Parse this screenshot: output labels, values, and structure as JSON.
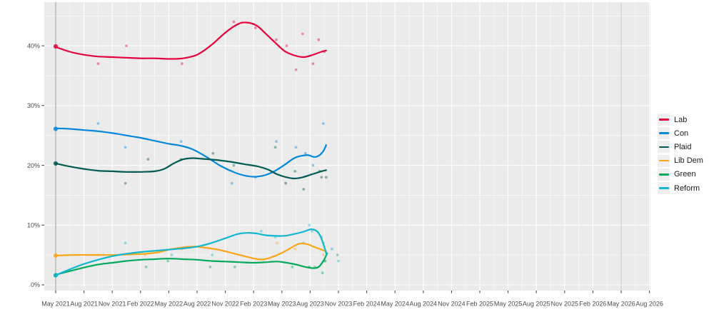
{
  "chart_data": {
    "type": "line",
    "title": "",
    "description": "Smoothed opinion polling trends with scatter of individual polls for six Welsh parties, May 2021 to Nov 2023, axis extended to Aug 2026",
    "x_axis": {
      "tick_labels": [
        "May 2021",
        "Aug 2021",
        "Nov 2021",
        "Feb 2022",
        "May 2022",
        "Aug 2022",
        "Nov 2022",
        "Feb 2023",
        "May 2023",
        "Aug 2023",
        "Nov 2023",
        "Feb 2024",
        "May 2024",
        "Aug 2024",
        "Nov 2024",
        "Feb 2025",
        "May 2025",
        "Aug 2025",
        "Nov 2025",
        "Feb 2026",
        "May 2026",
        "Aug 2026"
      ],
      "tick_months": [
        0,
        3,
        6,
        9,
        12,
        15,
        18,
        21,
        24,
        27,
        30,
        33,
        36,
        39,
        42,
        45,
        48,
        51,
        54,
        57,
        60,
        63
      ],
      "minor_grid": true
    },
    "y_axis": {
      "tick_labels": [
        "0%",
        "10%",
        "20%",
        "30%",
        "40%"
      ],
      "tick_values": [
        0,
        10,
        20,
        30,
        40
      ],
      "minor_values": [
        5,
        15,
        25,
        35,
        45
      ],
      "range": [
        -1,
        47.3
      ]
    },
    "grid": "on",
    "panel_color": "#ebebeb",
    "grid_color": "#ffffff",
    "axis_text_color": "#4d4d4d",
    "reference_lines": [
      {
        "name": "election-2021",
        "month": 0,
        "color": "#9e9e9e"
      },
      {
        "name": "election-2026",
        "month": 60,
        "color": "#c6c6c6"
      }
    ],
    "series": [
      {
        "name": "Lab",
        "color": "#E4003B",
        "election_result": {
          "month": 0,
          "value": 39.9
        },
        "trend": [
          [
            0,
            39.8
          ],
          [
            1.5,
            39.0
          ],
          [
            3,
            38.5
          ],
          [
            4.5,
            38.2
          ],
          [
            6,
            38.1
          ],
          [
            7.5,
            38.0
          ],
          [
            9,
            37.9
          ],
          [
            10.5,
            37.9
          ],
          [
            12,
            37.8
          ],
          [
            13.5,
            37.9
          ],
          [
            15,
            38.5
          ],
          [
            16.5,
            40.1
          ],
          [
            18,
            42.2
          ],
          [
            19.3,
            43.6
          ],
          [
            20.2,
            43.9
          ],
          [
            21.3,
            43.4
          ],
          [
            22.3,
            42.0
          ],
          [
            23.3,
            40.5
          ],
          [
            24.3,
            39.1
          ],
          [
            25.3,
            38.4
          ],
          [
            26.3,
            38.1
          ],
          [
            27.3,
            38.5
          ],
          [
            28.2,
            39.0
          ],
          [
            28.7,
            39.2
          ]
        ],
        "polls": [
          [
            4.5,
            37
          ],
          [
            7.5,
            40
          ],
          [
            13.4,
            37
          ],
          [
            18.9,
            44
          ],
          [
            21.2,
            43
          ],
          [
            23.4,
            41
          ],
          [
            24.5,
            40
          ],
          [
            25.5,
            36
          ],
          [
            26.2,
            42
          ],
          [
            27.3,
            37
          ],
          [
            27.9,
            41
          ],
          [
            28.5,
            39
          ]
        ]
      },
      {
        "name": "Con",
        "color": "#0087DC",
        "election_result": {
          "month": 0,
          "value": 26.1
        },
        "trend": [
          [
            0,
            26.2
          ],
          [
            1.5,
            26.1
          ],
          [
            3,
            25.9
          ],
          [
            4.5,
            25.7
          ],
          [
            6,
            25.4
          ],
          [
            7.5,
            25.0
          ],
          [
            9,
            24.6
          ],
          [
            10.5,
            24.1
          ],
          [
            12,
            23.6
          ],
          [
            13.2,
            23.3
          ],
          [
            14.5,
            22.7
          ],
          [
            16,
            21.4
          ],
          [
            17.5,
            19.9
          ],
          [
            19,
            18.8
          ],
          [
            20.3,
            18.2
          ],
          [
            21.3,
            18.1
          ],
          [
            22.3,
            18.4
          ],
          [
            23.3,
            19.1
          ],
          [
            24.3,
            20.1
          ],
          [
            25.3,
            21.2
          ],
          [
            26.1,
            21.6
          ],
          [
            26.8,
            21.7
          ],
          [
            27.4,
            21.4
          ],
          [
            27.9,
            21.6
          ],
          [
            28.4,
            22.4
          ],
          [
            28.7,
            23.4
          ]
        ],
        "polls": [
          [
            4.5,
            27
          ],
          [
            7.4,
            23
          ],
          [
            13.3,
            24
          ],
          [
            18.7,
            17
          ],
          [
            21.2,
            18
          ],
          [
            23.4,
            24
          ],
          [
            25.5,
            23
          ],
          [
            26.5,
            22
          ],
          [
            27.3,
            20
          ],
          [
            28.4,
            27
          ]
        ]
      },
      {
        "name": "Plaid",
        "color": "#005B54",
        "election_result": {
          "month": 0,
          "value": 20.3
        },
        "trend": [
          [
            0,
            20.3
          ],
          [
            1.5,
            19.8
          ],
          [
            3,
            19.4
          ],
          [
            4.5,
            19.1
          ],
          [
            6,
            19.0
          ],
          [
            7.5,
            18.9
          ],
          [
            9,
            18.9
          ],
          [
            10.5,
            19.0
          ],
          [
            11.5,
            19.4
          ],
          [
            12.5,
            20.3
          ],
          [
            13.5,
            21.0
          ],
          [
            14.5,
            21.2
          ],
          [
            15.5,
            21.1
          ],
          [
            17,
            20.9
          ],
          [
            18.5,
            20.6
          ],
          [
            20,
            20.2
          ],
          [
            21.5,
            19.8
          ],
          [
            22.5,
            19.3
          ],
          [
            23.5,
            18.5
          ],
          [
            24.5,
            18.0
          ],
          [
            25.3,
            17.8
          ],
          [
            26.2,
            18.0
          ],
          [
            27.2,
            18.5
          ],
          [
            28.2,
            19.0
          ],
          [
            28.7,
            19.2
          ]
        ],
        "polls": [
          [
            7.4,
            17
          ],
          [
            9.8,
            21
          ],
          [
            13.3,
            21
          ],
          [
            16.7,
            22
          ],
          [
            18.9,
            20
          ],
          [
            23.3,
            23
          ],
          [
            24.4,
            17
          ],
          [
            25.4,
            19
          ],
          [
            26.3,
            16
          ],
          [
            28.0,
            19
          ],
          [
            28.2,
            18
          ],
          [
            28.7,
            18
          ]
        ]
      },
      {
        "name": "Lib Dem",
        "color": "#FAA61A",
        "election_result": {
          "month": 0,
          "value": 4.9
        },
        "trend": [
          [
            0,
            4.9
          ],
          [
            2,
            5.0
          ],
          [
            4,
            5.0
          ],
          [
            6,
            5.0
          ],
          [
            8,
            5.1
          ],
          [
            9.5,
            5.2
          ],
          [
            11,
            5.5
          ],
          [
            12.3,
            6.0
          ],
          [
            13.6,
            6.3
          ],
          [
            14.8,
            6.4
          ],
          [
            16,
            6.2
          ],
          [
            17.5,
            5.8
          ],
          [
            19,
            5.2
          ],
          [
            20.3,
            4.7
          ],
          [
            21.4,
            4.3
          ],
          [
            22.2,
            4.3
          ],
          [
            23.2,
            4.8
          ],
          [
            24.3,
            5.6
          ],
          [
            25.3,
            6.5
          ],
          [
            25.9,
            6.9
          ],
          [
            26.7,
            6.8
          ],
          [
            27.5,
            6.3
          ],
          [
            28.2,
            5.9
          ],
          [
            28.7,
            5.6
          ]
        ],
        "polls": [
          [
            4.5,
            5
          ],
          [
            9.5,
            5
          ],
          [
            13.4,
            6
          ],
          [
            23.5,
            7
          ],
          [
            25.4,
            6
          ],
          [
            28.4,
            5
          ]
        ]
      },
      {
        "name": "Green",
        "color": "#02A95B",
        "election_result": {
          "month": 0,
          "value": 1.6
        },
        "trend": [
          [
            0,
            1.7
          ],
          [
            1.5,
            2.3
          ],
          [
            3,
            2.9
          ],
          [
            4.5,
            3.4
          ],
          [
            6,
            3.7
          ],
          [
            7.5,
            4.0
          ],
          [
            9,
            4.2
          ],
          [
            10.5,
            4.3
          ],
          [
            12,
            4.4
          ],
          [
            13.5,
            4.3
          ],
          [
            15,
            4.2
          ],
          [
            16.5,
            4.0
          ],
          [
            18,
            3.9
          ],
          [
            19.5,
            3.8
          ],
          [
            21,
            3.7
          ],
          [
            22.3,
            3.8
          ],
          [
            23.5,
            3.9
          ],
          [
            24.5,
            3.7
          ],
          [
            25.5,
            3.4
          ],
          [
            26.5,
            3.0
          ],
          [
            27.3,
            2.8
          ],
          [
            27.9,
            3.0
          ],
          [
            28.4,
            4.0
          ],
          [
            28.8,
            5.3
          ]
        ],
        "polls": [
          [
            9.6,
            3
          ],
          [
            11.9,
            4
          ],
          [
            16.4,
            3
          ],
          [
            19,
            3
          ],
          [
            25.1,
            3
          ],
          [
            26.9,
            3
          ],
          [
            27.5,
            3
          ],
          [
            28.3,
            2
          ],
          [
            28.5,
            4
          ],
          [
            28.6,
            4
          ],
          [
            29.9,
            5
          ]
        ]
      },
      {
        "name": "Reform",
        "color": "#12B6CF",
        "election_result": {
          "month": 0,
          "value": 1.6
        },
        "trend": [
          [
            0,
            1.6
          ],
          [
            1.5,
            2.6
          ],
          [
            3,
            3.5
          ],
          [
            4.5,
            4.2
          ],
          [
            6,
            4.8
          ],
          [
            7.5,
            5.2
          ],
          [
            9,
            5.5
          ],
          [
            10.5,
            5.7
          ],
          [
            12,
            5.9
          ],
          [
            13.5,
            6.1
          ],
          [
            15,
            6.4
          ],
          [
            16.5,
            7.0
          ],
          [
            18,
            7.8
          ],
          [
            19.3,
            8.5
          ],
          [
            20.3,
            8.7
          ],
          [
            21.3,
            8.6
          ],
          [
            22.3,
            8.3
          ],
          [
            23.3,
            8.2
          ],
          [
            24.3,
            8.2
          ],
          [
            25.3,
            8.5
          ],
          [
            26.3,
            8.9
          ],
          [
            27.1,
            9.3
          ],
          [
            27.7,
            9.0
          ],
          [
            28.1,
            8.1
          ],
          [
            28.45,
            6.6
          ],
          [
            28.75,
            5.0
          ]
        ],
        "polls": [
          [
            7.4,
            7
          ],
          [
            12.3,
            5
          ],
          [
            16.6,
            5
          ],
          [
            21.8,
            9
          ],
          [
            23.3,
            8
          ],
          [
            26.3,
            7
          ],
          [
            26.9,
            10
          ],
          [
            27.2,
            9
          ],
          [
            28.2,
            8
          ],
          [
            28.4,
            7
          ],
          [
            29.3,
            6
          ],
          [
            30,
            4
          ]
        ]
      }
    ],
    "legend_position": "right"
  },
  "legend": {
    "entries": [
      "Lab",
      "Con",
      "Plaid",
      "Lib Dem",
      "Green",
      "Reform"
    ]
  }
}
